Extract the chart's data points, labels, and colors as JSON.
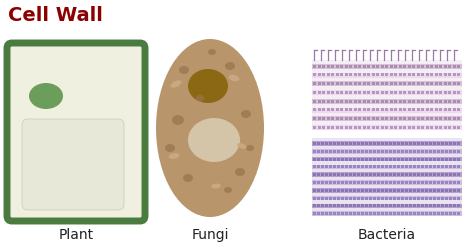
{
  "title": "Cell Wall",
  "title_color": "#8B0000",
  "title_fontsize": 14,
  "bg_color": "#FFFFFF",
  "labels": [
    "Plant",
    "Fungi",
    "Bacteria"
  ],
  "label_fontsize": 10,
  "plant_wall_color": "#4a7c3f",
  "plant_interior_color": "#f0f0e0",
  "plant_nucleus_color": "#6a9e5a",
  "plant_vacuole_color": "#e8e8d8",
  "fungi_body_color": "#b8956a",
  "fungi_nucleus_color": "#8B6914",
  "fungi_vacuole_color": "#d4c4a8",
  "bact_bg1": "#f5eef5",
  "bact_bg2": "#eae4f2",
  "bact_stripe_light": "#e0c8e0",
  "bact_stripe_dark": "#b090b8",
  "bact_dot_color": "#806898",
  "bact_comb_color": "#9878a8"
}
